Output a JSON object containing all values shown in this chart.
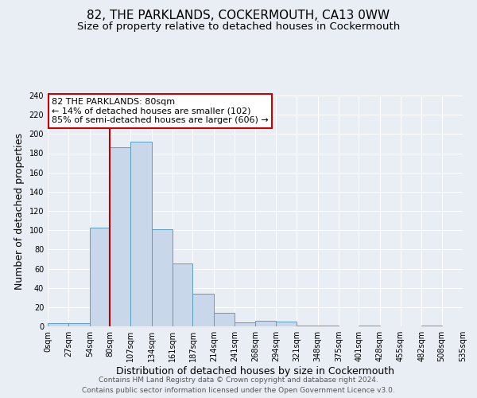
{
  "title": "82, THE PARKLANDS, COCKERMOUTH, CA13 0WW",
  "subtitle": "Size of property relative to detached houses in Cockermouth",
  "xlabel": "Distribution of detached houses by size in Cockermouth",
  "ylabel": "Number of detached properties",
  "bin_edges": [
    0,
    27,
    54,
    80,
    107,
    134,
    161,
    187,
    214,
    241,
    268,
    294,
    321,
    348,
    375,
    401,
    428,
    455,
    482,
    508,
    535
  ],
  "bin_labels": [
    "0sqm",
    "27sqm",
    "54sqm",
    "80sqm",
    "107sqm",
    "134sqm",
    "161sqm",
    "187sqm",
    "214sqm",
    "241sqm",
    "268sqm",
    "294sqm",
    "321sqm",
    "348sqm",
    "375sqm",
    "401sqm",
    "428sqm",
    "455sqm",
    "482sqm",
    "508sqm",
    "535sqm"
  ],
  "counts": [
    3,
    3,
    103,
    186,
    192,
    101,
    65,
    34,
    14,
    4,
    6,
    5,
    1,
    1,
    0,
    1,
    0,
    0,
    1,
    0
  ],
  "bar_color": "#c8d8ea",
  "bar_edge_color": "#5a9fc0",
  "red_line_x": 80,
  "ylim": [
    0,
    240
  ],
  "yticks": [
    0,
    20,
    40,
    60,
    80,
    100,
    120,
    140,
    160,
    180,
    200,
    220,
    240
  ],
  "annotation_title": "82 THE PARKLANDS: 80sqm",
  "annotation_line1": "← 14% of detached houses are smaller (102)",
  "annotation_line2": "85% of semi-detached houses are larger (606) →",
  "annotation_box_color": "#ffffff",
  "annotation_box_edge_color": "#cc0000",
  "footer_line1": "Contains HM Land Registry data © Crown copyright and database right 2024.",
  "footer_line2": "Contains public sector information licensed under the Open Government Licence v3.0.",
  "background_color": "#e8eef4",
  "grid_color": "#ffffff",
  "title_fontsize": 11,
  "subtitle_fontsize": 9.5,
  "axis_label_fontsize": 9,
  "tick_fontsize": 7,
  "annotation_fontsize": 8,
  "footer_fontsize": 6.5
}
